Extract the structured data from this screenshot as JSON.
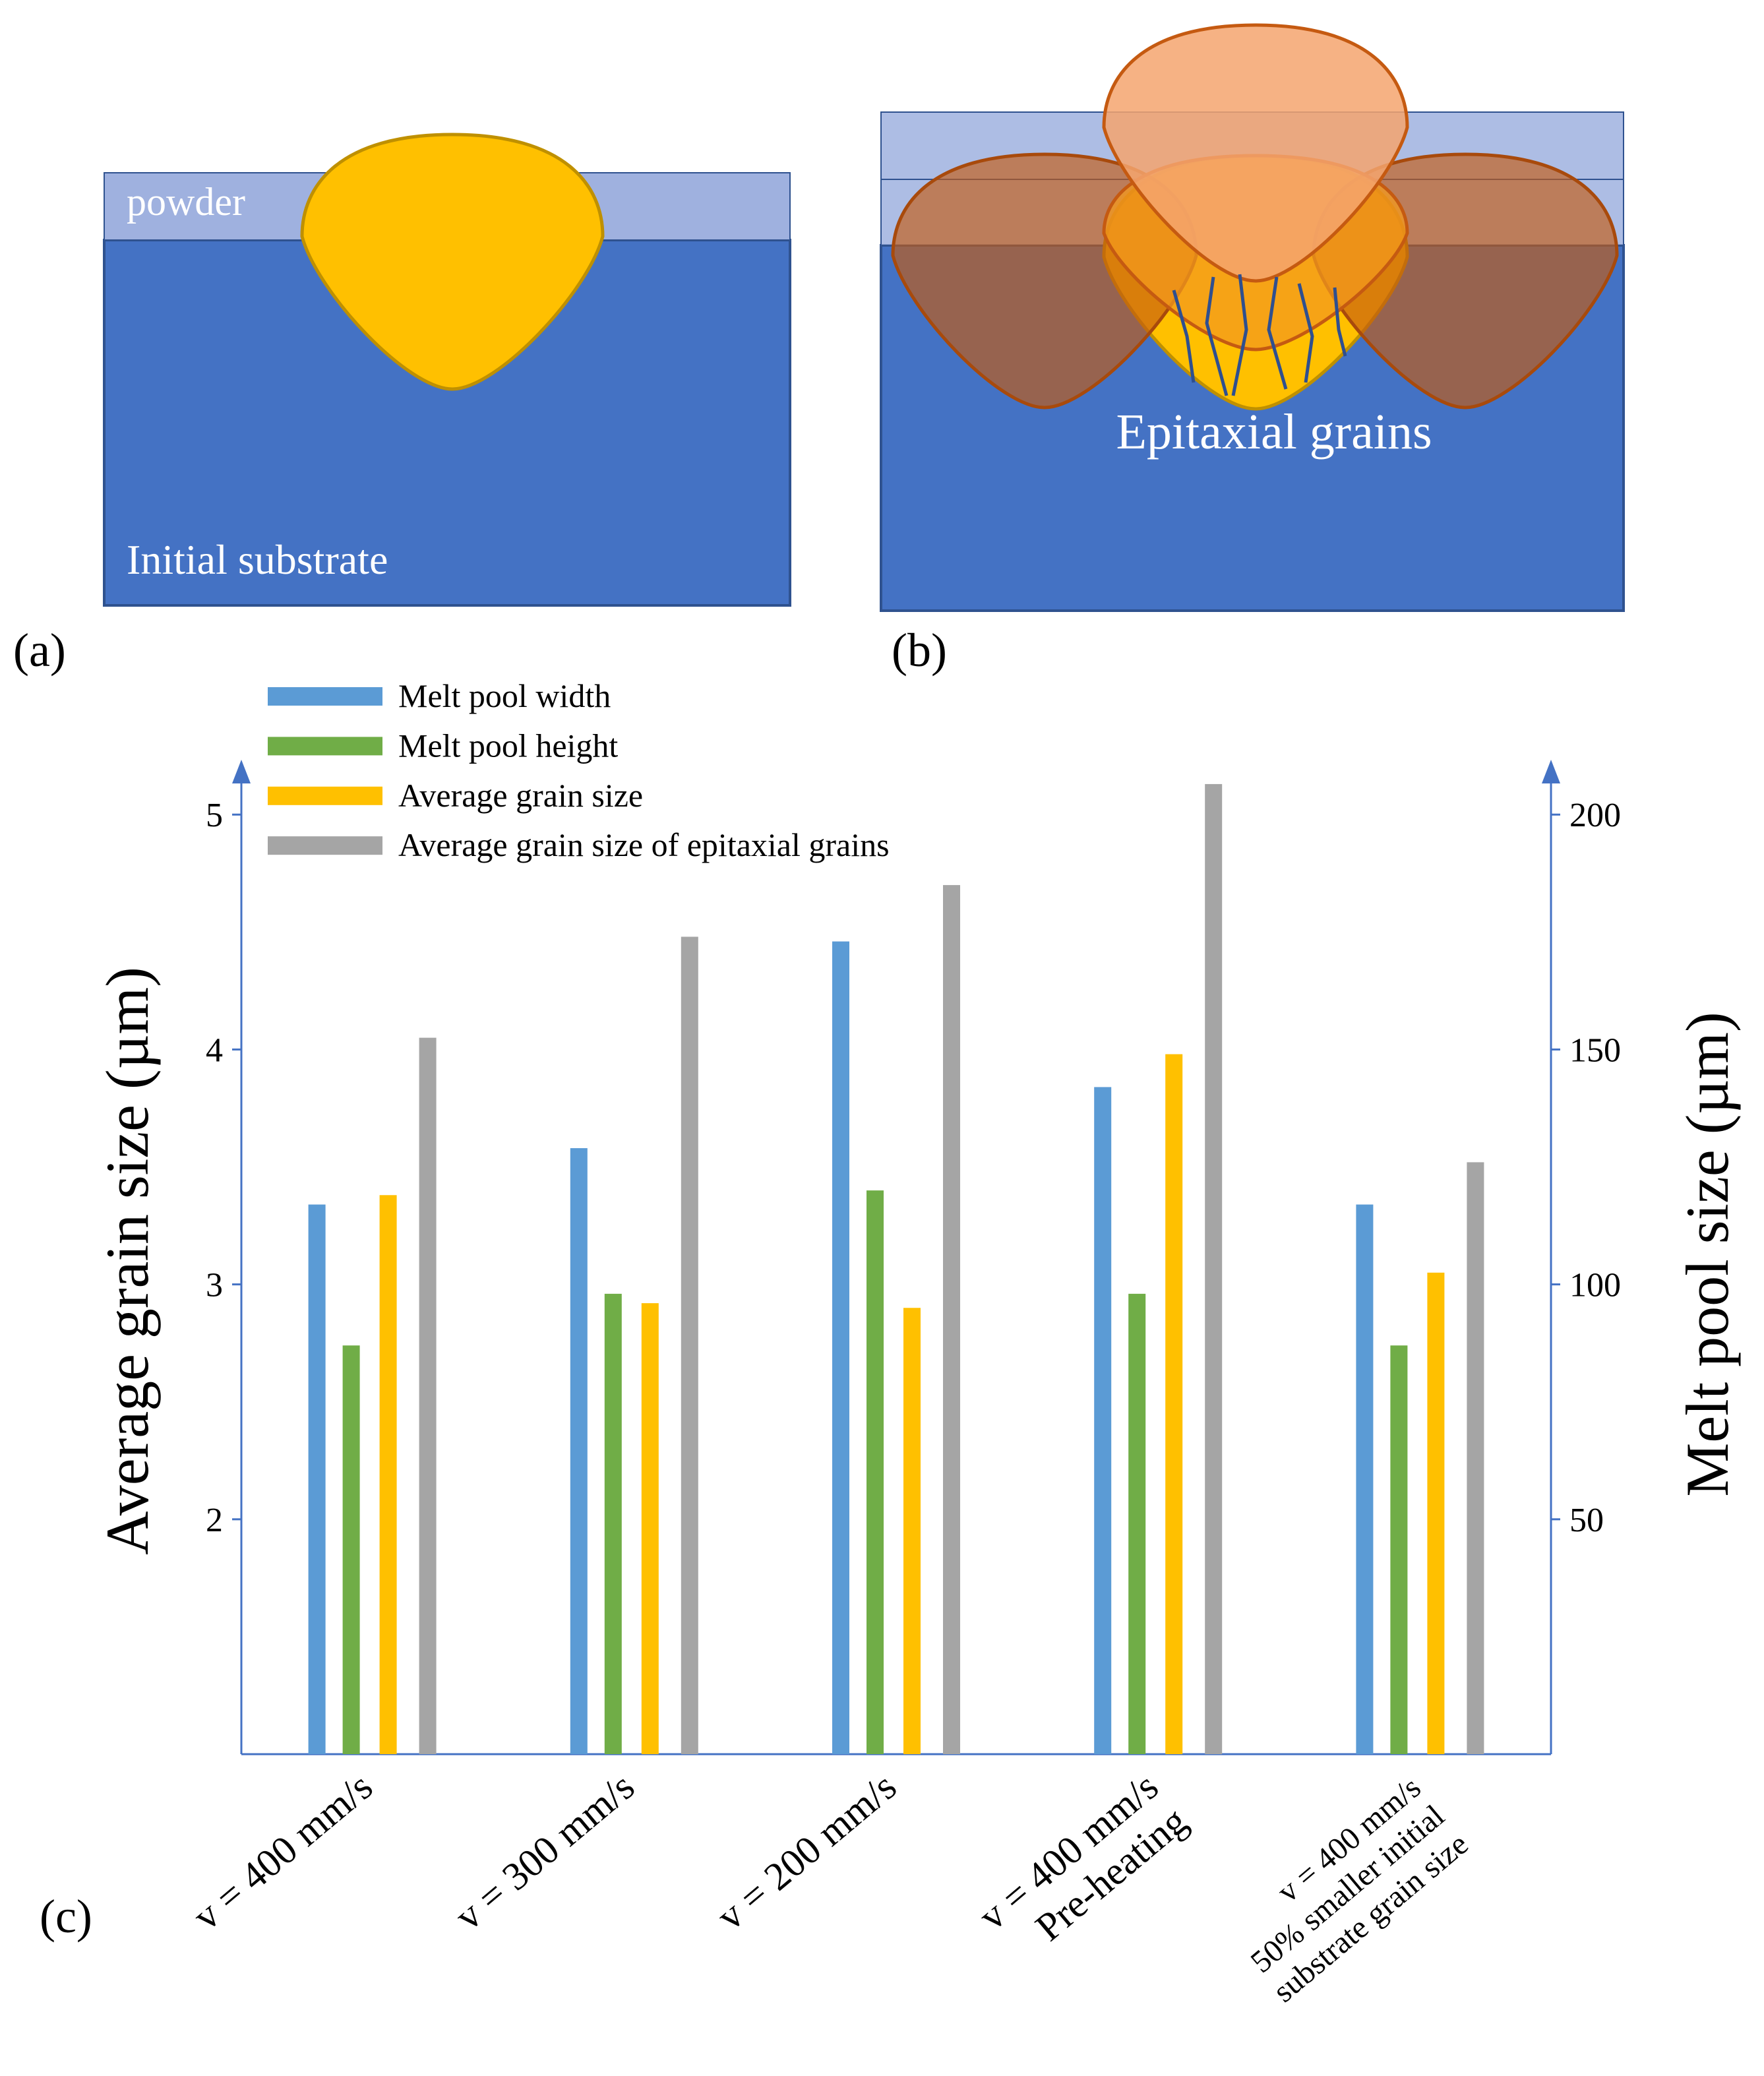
{
  "panel_a": {
    "label": "(a)",
    "powder": "powder",
    "substrate": "Initial substrate"
  },
  "panel_b": {
    "label": "(b)",
    "grains": "Epitaxial grains"
  },
  "chart_data": {
    "type": "bar",
    "label": "(c)",
    "ylabel": "Average grain size (µm)",
    "y2label": "Melt pool size (µm)",
    "categories": [
      "v = 400 mm/s",
      "v = 300 mm/s",
      "v = 200 mm/s",
      [
        "v = 400 mm/s",
        "Pre-heating"
      ],
      [
        "v = 400 mm/s",
        "50% smaller initial",
        "substrate grain size"
      ]
    ],
    "series": [
      {
        "name": "Melt pool width",
        "color": "#5b9bd5",
        "axis": "y2",
        "values": [
          117,
          129,
          173,
          142,
          117
        ]
      },
      {
        "name": "Melt pool height",
        "color": "#70ad47",
        "axis": "y2",
        "values": [
          87,
          98,
          120,
          98,
          87
        ]
      },
      {
        "name": "Average grain size",
        "color": "#ffc000",
        "values": [
          3.38,
          2.92,
          2.9,
          3.98,
          3.05
        ]
      },
      {
        "name": "Average grain size of epitaxial grains",
        "color": "#a5a5a5",
        "values": [
          4.05,
          4.48,
          4.7,
          5.13,
          3.52
        ]
      }
    ],
    "ylim": [
      1,
      5.2
    ],
    "yticks": [
      2,
      3,
      4,
      5
    ],
    "y2lim": [
      0,
      210
    ],
    "y2ticks": [
      50,
      100,
      150,
      200
    ],
    "legend": "top-left"
  }
}
